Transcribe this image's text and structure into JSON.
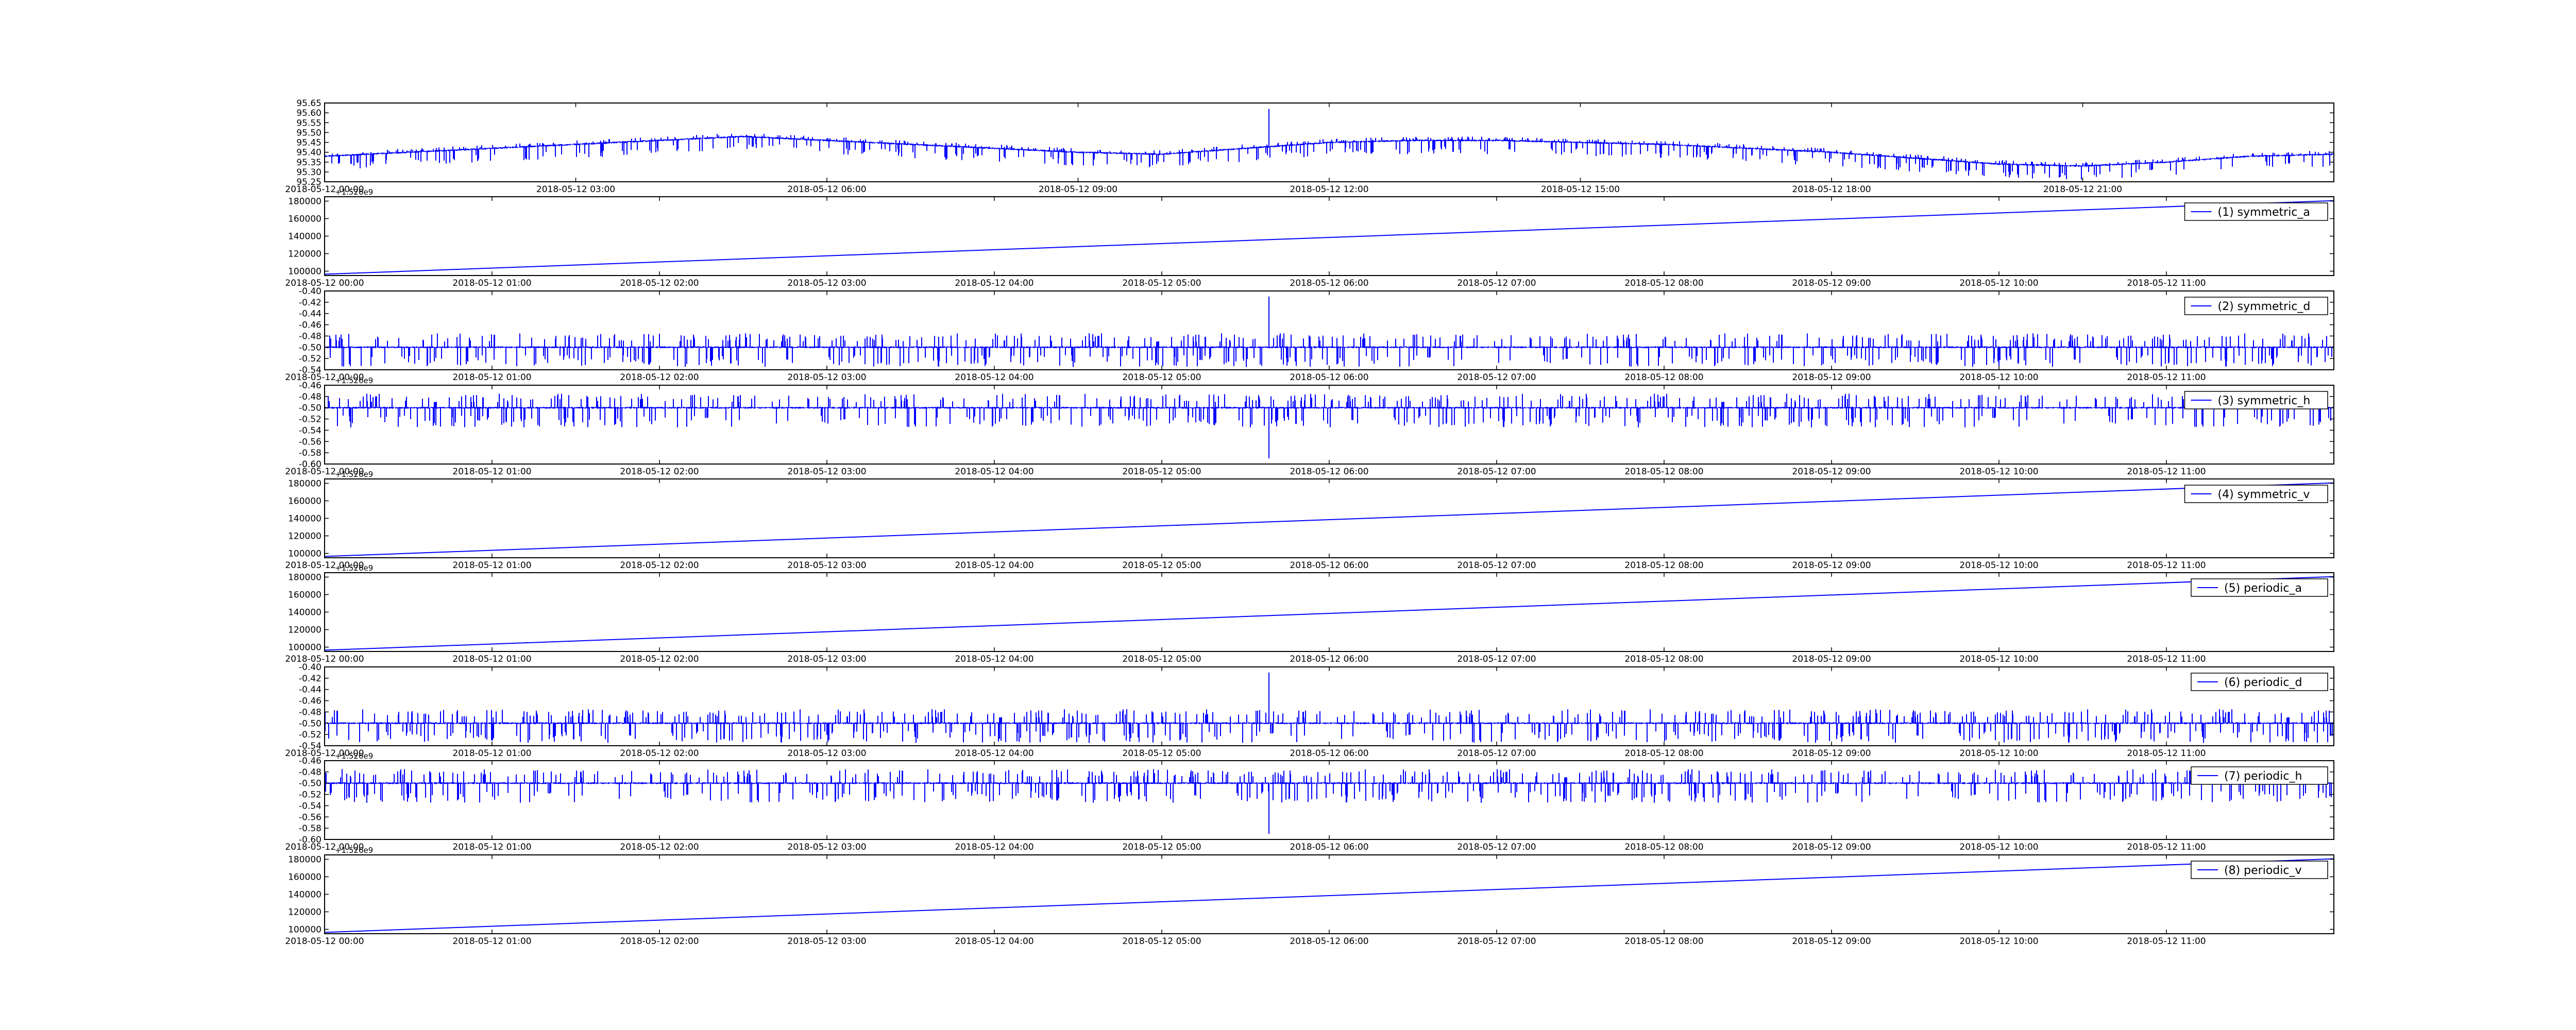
{
  "colors": {
    "series": "#0000ff",
    "frame": "#000000",
    "background": "#ffffff"
  },
  "chart_data": [
    {
      "type": "line",
      "style": "noise",
      "title": "",
      "xlabel": "",
      "ylabel": "",
      "ylim": [
        95.25,
        95.65
      ],
      "yticks": [
        "95.25",
        "95.30",
        "95.35",
        "95.40",
        "95.45",
        "95.50",
        "95.55",
        "95.60",
        "95.65"
      ],
      "xticks": [
        "2018-05-12 00:00",
        "2018-05-12 03:00",
        "2018-05-12 06:00",
        "2018-05-12 09:00",
        "2018-05-12 12:00",
        "2018-05-12 15:00",
        "2018-05-12 18:00",
        "2018-05-12 21:00"
      ],
      "offset_label": "",
      "legend": "",
      "series": [
        {
          "baseline": [
            95.38,
            95.4,
            95.42,
            95.44,
            95.46,
            95.48,
            95.46,
            95.44,
            95.42,
            95.4,
            95.39,
            95.42,
            95.45,
            95.46,
            95.46,
            95.45,
            95.44,
            95.42,
            95.4,
            95.37,
            95.34,
            95.33,
            95.35,
            95.38,
            95.39
          ],
          "spike_x": 0.47,
          "spike_y": 95.62,
          "noise_up": 0.02,
          "noise_down": 0.07
        }
      ]
    },
    {
      "type": "line",
      "style": "linear",
      "title": "",
      "xlabel": "",
      "ylabel": "",
      "ylim": [
        95000,
        185000
      ],
      "yticks": [
        "100000",
        "120000",
        "140000",
        "160000",
        "180000"
      ],
      "xticks": [
        "2018-05-12 00:00",
        "2018-05-12 01:00",
        "2018-05-12 02:00",
        "2018-05-12 03:00",
        "2018-05-12 04:00",
        "2018-05-12 05:00",
        "2018-05-12 06:00",
        "2018-05-12 07:00",
        "2018-05-12 08:00",
        "2018-05-12 09:00",
        "2018-05-12 10:00",
        "2018-05-12 11:00"
      ],
      "offset_label": "+1.526e9",
      "legend": "(1) symmetric_a",
      "series": [
        {
          "name": "(1) symmetric_a",
          "start": 96500,
          "end": 180500
        }
      ]
    },
    {
      "type": "line",
      "style": "noise",
      "title": "",
      "xlabel": "",
      "ylabel": "",
      "ylim": [
        -0.54,
        -0.4
      ],
      "yticks": [
        "-0.54",
        "-0.52",
        "-0.50",
        "-0.48",
        "-0.46",
        "-0.44",
        "-0.42",
        "-0.40"
      ],
      "xticks": [
        "2018-05-12 00:00",
        "2018-05-12 01:00",
        "2018-05-12 02:00",
        "2018-05-12 03:00",
        "2018-05-12 04:00",
        "2018-05-12 05:00",
        "2018-05-12 06:00",
        "2018-05-12 07:00",
        "2018-05-12 08:00",
        "2018-05-12 09:00",
        "2018-05-12 10:00",
        "2018-05-12 11:00"
      ],
      "offset_label": "",
      "legend": "(2) symmetric_d",
      "series": [
        {
          "name": "(2) symmetric_d",
          "baseline": [
            -0.5
          ],
          "spike_x": 0.47,
          "spike_y": -0.41,
          "noise_up": 0.025,
          "noise_down": 0.035
        }
      ]
    },
    {
      "type": "line",
      "style": "noise",
      "title": "",
      "xlabel": "",
      "ylabel": "",
      "ylim": [
        -0.6,
        -0.46
      ],
      "yticks": [
        "-0.60",
        "-0.58",
        "-0.56",
        "-0.54",
        "-0.52",
        "-0.50",
        "-0.48",
        "-0.46"
      ],
      "xticks": [
        "2018-05-12 00:00",
        "2018-05-12 01:00",
        "2018-05-12 02:00",
        "2018-05-12 03:00",
        "2018-05-12 04:00",
        "2018-05-12 05:00",
        "2018-05-12 06:00",
        "2018-05-12 07:00",
        "2018-05-12 08:00",
        "2018-05-12 09:00",
        "2018-05-12 10:00",
        "2018-05-12 11:00"
      ],
      "offset_label": "+1.526e9",
      "legend": "(3) symmetric_h",
      "series": [
        {
          "name": "(3) symmetric_h",
          "baseline": [
            -0.5
          ],
          "spike_x": 0.47,
          "spike_y": -0.59,
          "noise_up": 0.025,
          "noise_down": 0.035
        }
      ]
    },
    {
      "type": "line",
      "style": "linear",
      "title": "",
      "xlabel": "",
      "ylabel": "",
      "ylim": [
        95000,
        185000
      ],
      "yticks": [
        "100000",
        "120000",
        "140000",
        "160000",
        "180000"
      ],
      "xticks": [
        "2018-05-12 00:00",
        "2018-05-12 01:00",
        "2018-05-12 02:00",
        "2018-05-12 03:00",
        "2018-05-12 04:00",
        "2018-05-12 05:00",
        "2018-05-12 06:00",
        "2018-05-12 07:00",
        "2018-05-12 08:00",
        "2018-05-12 09:00",
        "2018-05-12 10:00",
        "2018-05-12 11:00"
      ],
      "offset_label": "+1.526e9",
      "legend": "(4) symmetric_v",
      "series": [
        {
          "name": "(4) symmetric_v",
          "start": 96500,
          "end": 180500
        }
      ]
    },
    {
      "type": "line",
      "style": "linear",
      "title": "",
      "xlabel": "",
      "ylabel": "",
      "ylim": [
        95000,
        185000
      ],
      "yticks": [
        "100000",
        "120000",
        "140000",
        "160000",
        "180000"
      ],
      "xticks": [
        "2018-05-12 00:00",
        "2018-05-12 01:00",
        "2018-05-12 02:00",
        "2018-05-12 03:00",
        "2018-05-12 04:00",
        "2018-05-12 05:00",
        "2018-05-12 06:00",
        "2018-05-12 07:00",
        "2018-05-12 08:00",
        "2018-05-12 09:00",
        "2018-05-12 10:00",
        "2018-05-12 11:00"
      ],
      "offset_label": "+1.526e9",
      "legend": "(5) periodic_a",
      "series": [
        {
          "name": "(5) periodic_a",
          "start": 96500,
          "end": 180500
        }
      ]
    },
    {
      "type": "line",
      "style": "noise",
      "title": "",
      "xlabel": "",
      "ylabel": "",
      "ylim": [
        -0.54,
        -0.4
      ],
      "yticks": [
        "-0.54",
        "-0.52",
        "-0.50",
        "-0.48",
        "-0.46",
        "-0.44",
        "-0.42",
        "-0.40"
      ],
      "xticks": [
        "2018-05-12 00:00",
        "2018-05-12 01:00",
        "2018-05-12 02:00",
        "2018-05-12 03:00",
        "2018-05-12 04:00",
        "2018-05-12 05:00",
        "2018-05-12 06:00",
        "2018-05-12 07:00",
        "2018-05-12 08:00",
        "2018-05-12 09:00",
        "2018-05-12 10:00",
        "2018-05-12 11:00"
      ],
      "offset_label": "",
      "legend": "(6) periodic_d",
      "series": [
        {
          "name": "(6) periodic_d",
          "baseline": [
            -0.5
          ],
          "spike_x": 0.47,
          "spike_y": -0.41,
          "noise_up": 0.025,
          "noise_down": 0.035
        }
      ]
    },
    {
      "type": "line",
      "style": "noise",
      "title": "",
      "xlabel": "",
      "ylabel": "",
      "ylim": [
        -0.6,
        -0.46
      ],
      "yticks": [
        "-0.60",
        "-0.58",
        "-0.56",
        "-0.54",
        "-0.52",
        "-0.50",
        "-0.48",
        "-0.46"
      ],
      "xticks": [
        "2018-05-12 00:00",
        "2018-05-12 01:00",
        "2018-05-12 02:00",
        "2018-05-12 03:00",
        "2018-05-12 04:00",
        "2018-05-12 05:00",
        "2018-05-12 06:00",
        "2018-05-12 07:00",
        "2018-05-12 08:00",
        "2018-05-12 09:00",
        "2018-05-12 10:00",
        "2018-05-12 11:00"
      ],
      "offset_label": "+1.526e9",
      "legend": "(7) periodic_h",
      "series": [
        {
          "name": "(7) periodic_h",
          "baseline": [
            -0.5
          ],
          "spike_x": 0.47,
          "spike_y": -0.59,
          "noise_up": 0.025,
          "noise_down": 0.035
        }
      ]
    },
    {
      "type": "line",
      "style": "linear",
      "title": "",
      "xlabel": "",
      "ylabel": "",
      "ylim": [
        95000,
        185000
      ],
      "yticks": [
        "100000",
        "120000",
        "140000",
        "160000",
        "180000"
      ],
      "xticks": [
        "2018-05-12 00:00",
        "2018-05-12 01:00",
        "2018-05-12 02:00",
        "2018-05-12 03:00",
        "2018-05-12 04:00",
        "2018-05-12 05:00",
        "2018-05-12 06:00",
        "2018-05-12 07:00",
        "2018-05-12 08:00",
        "2018-05-12 09:00",
        "2018-05-12 10:00",
        "2018-05-12 11:00"
      ],
      "offset_label": "+1.526e9",
      "legend": "(8) periodic_v",
      "series": [
        {
          "name": "(8) periodic_v",
          "start": 96500,
          "end": 180500
        }
      ]
    }
  ]
}
